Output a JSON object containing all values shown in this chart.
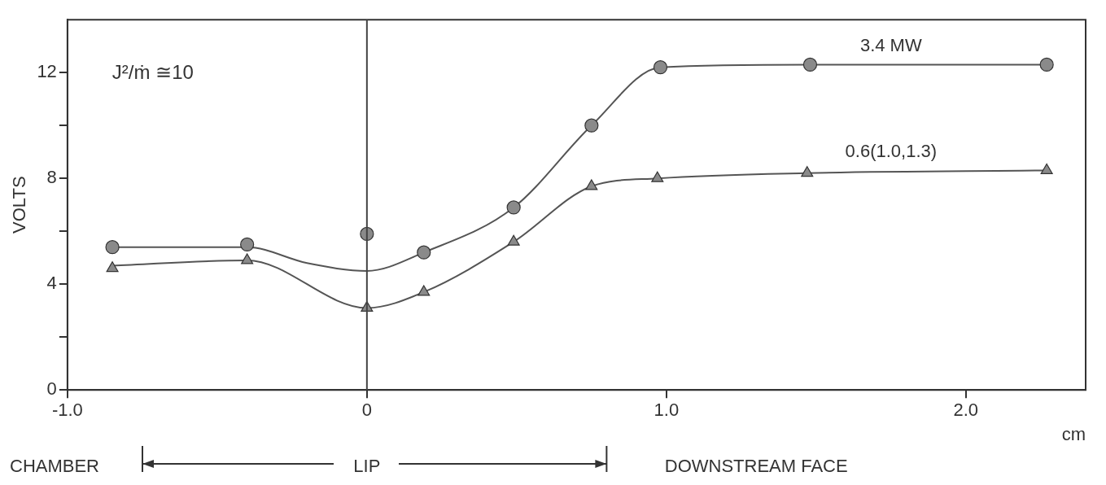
{
  "chart_data": {
    "type": "scatter",
    "ylabel": "VOLTS",
    "xlabel": "cm",
    "xlim": [
      -1,
      2.4
    ],
    "xticks": [
      {
        "value": -1,
        "label": "-1.0"
      },
      0,
      {
        "value": 1,
        "label": "1.0"
      },
      {
        "value": 2,
        "label": "2.0"
      }
    ],
    "ylim": [
      0,
      14
    ],
    "yticks": [
      0,
      {
        "value": 2,
        "label": null
      },
      4,
      {
        "value": 6,
        "label": null
      },
      8,
      {
        "value": 10,
        "label": null
      },
      12
    ],
    "grid": false,
    "legend": false,
    "series": [
      {
        "type": "line",
        "marker": "none",
        "color": "#555555",
        "x": [
          -0.85,
          -0.4,
          -0.2,
          0,
          0.19,
          0.49,
          0.75,
          0.98,
          1.48,
          2.27
        ],
        "values": [
          5.4,
          5.4,
          4.8,
          4.5,
          5.2,
          6.9,
          10.0,
          12.2,
          12.3,
          12.3
        ]
      },
      {
        "type": "line",
        "marker": "none",
        "color": "#555555",
        "x": [
          -0.85,
          -0.4,
          0,
          0.19,
          0.49,
          0.75,
          0.97,
          1.47,
          2.27
        ],
        "values": [
          4.7,
          4.9,
          3.1,
          3.7,
          5.6,
          7.7,
          8.0,
          8.2,
          8.3
        ]
      },
      {
        "type": "scatter",
        "marker": "circle",
        "color": "#8a8a8a",
        "x": [
          -0.85,
          -0.4,
          0,
          0.19,
          0.49,
          0.75,
          0.98,
          1.48,
          2.27
        ],
        "values": [
          5.4,
          5.5,
          5.9,
          5.2,
          6.9,
          10.0,
          12.2,
          12.3,
          12.3
        ]
      },
      {
        "type": "scatter",
        "marker": "triangle",
        "color": "#8a8a8a",
        "x": [
          -0.85,
          -0.4,
          0,
          0.19,
          0.49,
          0.75,
          0.97,
          1.47,
          2.27
        ],
        "values": [
          4.6,
          4.9,
          3.1,
          3.7,
          5.6,
          7.7,
          8.0,
          8.2,
          8.3
        ]
      }
    ],
    "ref_lines": [
      {
        "axis": "x",
        "value": 0,
        "color": "#444444"
      }
    ],
    "annotations": [
      "J²/ṁ ≅10",
      {
        "text": "3.4 MW",
        "x": 1.75,
        "y": 12.3
      },
      {
        "text": "0.6(1.0,1.3)",
        "x": 1.75,
        "y": 8.3
      },
      "CHAMBER",
      "LIP",
      "DOWNSTREAM FACE"
    ]
  }
}
